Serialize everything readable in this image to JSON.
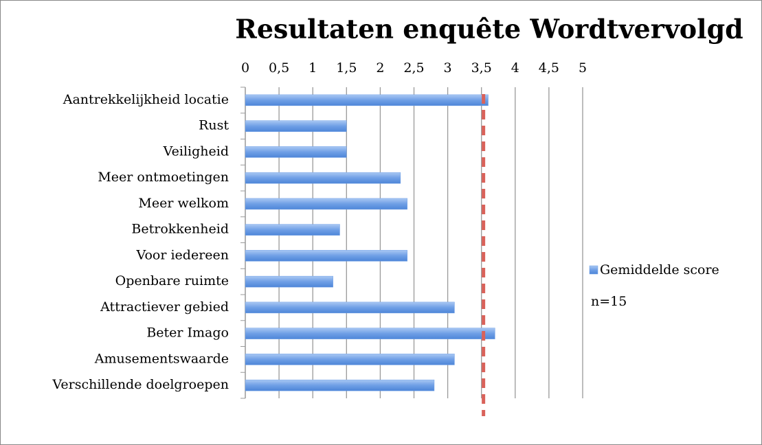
{
  "chart_data": {
    "type": "barh",
    "title": "Resultaten enquête Wordtvervolgd",
    "categories": [
      "Aantrekkelijkheid locatie",
      "Rust",
      "Veiligheid",
      "Meer ontmoetingen",
      "Meer welkom",
      "Betrokkenheid",
      "Voor iedereen",
      "Openbare ruimte",
      "Attractiever gebied",
      "Beter Imago",
      "Amusementswaarde",
      "Verschillende doelgroepen"
    ],
    "series": [
      {
        "name": "Gemiddelde score",
        "color": "#6f9fe6",
        "values": [
          3.6,
          1.5,
          1.5,
          2.3,
          2.4,
          1.4,
          2.4,
          1.3,
          3.1,
          3.7,
          3.1,
          2.8
        ]
      }
    ],
    "xlim": [
      0,
      5
    ],
    "xticks": [
      0,
      {
        "value": 0.5,
        "label": "0,5"
      },
      1,
      {
        "value": 1.5,
        "label": "1,5"
      },
      2,
      {
        "value": 2.5,
        "label": "2,5"
      },
      3,
      {
        "value": 3.5,
        "label": "3,5"
      },
      4,
      {
        "value": 4.5,
        "label": "4,5"
      },
      5
    ],
    "grid": true,
    "reference_line": {
      "value": 3.53,
      "color": "#d9625a"
    },
    "annotation": "n=15",
    "legend": "right"
  }
}
